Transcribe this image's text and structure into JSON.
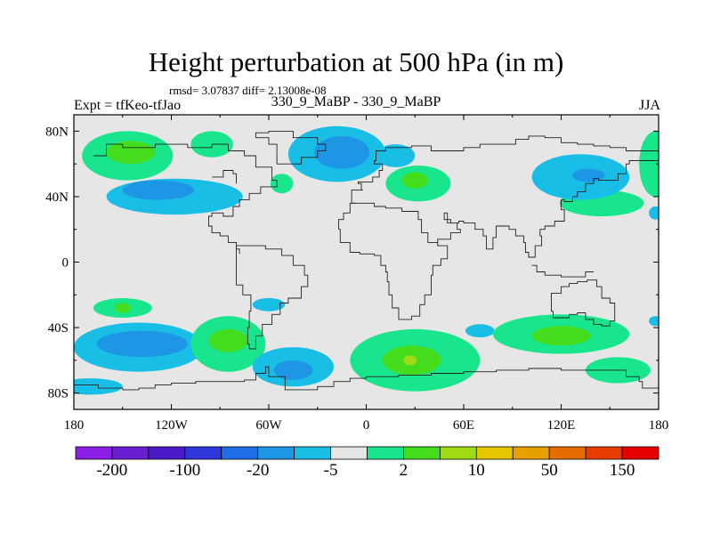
{
  "chart_data": {
    "type": "heatmap",
    "title": "Height perturbation at 500 hPa (in m)",
    "stat_text": "rmsd= 3.07837 diff= 2.13008e-08",
    "left_label": "Expt = tfKeo-tfJao",
    "center_label": "330_9_MaBP - 330_9_MaBP",
    "right_label": "JJA",
    "x_axis": {
      "range": [
        -180,
        180
      ],
      "ticks": [
        -180,
        -120,
        -60,
        0,
        60,
        120,
        180
      ],
      "tick_labels": [
        "180",
        "120W",
        "60W",
        "0",
        "60E",
        "120E",
        "180"
      ]
    },
    "y_axis": {
      "range": [
        -90,
        90
      ],
      "ticks": [
        80,
        40,
        0,
        -40,
        -80
      ],
      "tick_labels": [
        "80N",
        "40N",
        "0",
        "40S",
        "80S"
      ]
    },
    "colorbar": {
      "colors": [
        "#8c1ee6",
        "#6a1ed2",
        "#4b19c8",
        "#2d37dc",
        "#1e6ee6",
        "#1e96e6",
        "#19bee6",
        "#e6e6e6",
        "#19e68c",
        "#46dc1e",
        "#a0dc14",
        "#e6c800",
        "#e6a000",
        "#e66e00",
        "#e63c00",
        "#e60000"
      ],
      "labels": [
        "-200",
        "-100",
        "-20",
        "-5",
        "2",
        "10",
        "50",
        "150"
      ]
    },
    "anomaly_regions": [
      {
        "sign": "neg",
        "level": 1,
        "lon": -118,
        "lat": 40,
        "rlon": 42,
        "rlat": 11
      },
      {
        "sign": "neg",
        "level": 2,
        "lon": -128,
        "lat": 44,
        "rlon": 22,
        "rlat": 6
      },
      {
        "sign": "pos",
        "level": 1,
        "lon": -147,
        "lat": 65,
        "rlon": 28,
        "rlat": 15
      },
      {
        "sign": "pos",
        "level": 2,
        "lon": -145,
        "lat": 67,
        "rlon": 15,
        "rlat": 7
      },
      {
        "sign": "pos",
        "level": 1,
        "lon": -95,
        "lat": 72,
        "rlon": 13,
        "rlat": 8
      },
      {
        "sign": "neg",
        "level": 1,
        "lon": -18,
        "lat": 66,
        "rlon": 30,
        "rlat": 17
      },
      {
        "sign": "neg",
        "level": 2,
        "lon": -15,
        "lat": 67,
        "rlon": 17,
        "rlat": 10
      },
      {
        "sign": "pos",
        "level": 1,
        "lon": -52,
        "lat": 48,
        "rlon": 7,
        "rlat": 6
      },
      {
        "sign": "pos",
        "level": 1,
        "lon": 32,
        "lat": 48,
        "rlon": 20,
        "rlat": 11
      },
      {
        "sign": "pos",
        "level": 2,
        "lon": 30,
        "lat": 50,
        "rlon": 8,
        "rlat": 5
      },
      {
        "sign": "neg",
        "level": 1,
        "lon": 18,
        "lat": 65,
        "rlon": 12,
        "rlat": 7
      },
      {
        "sign": "pos",
        "level": 1,
        "lon": 145,
        "lat": 36,
        "rlon": 26,
        "rlat": 8
      },
      {
        "sign": "neg",
        "level": 1,
        "lon": 132,
        "lat": 52,
        "rlon": 30,
        "rlat": 14
      },
      {
        "sign": "neg",
        "level": 2,
        "lon": 137,
        "lat": 53,
        "rlon": 10,
        "rlat": 4
      },
      {
        "sign": "pos",
        "level": 1,
        "lon": 178,
        "lat": 60,
        "rlon": 10,
        "rlat": 20
      },
      {
        "sign": "neg",
        "level": 1,
        "lon": 178,
        "lat": 30,
        "rlon": 4,
        "rlat": 4
      },
      {
        "sign": "pos",
        "level": 1,
        "lon": -150,
        "lat": -28,
        "rlon": 18,
        "rlat": 6
      },
      {
        "sign": "pos",
        "level": 2,
        "lon": -150,
        "lat": -28,
        "rlon": 5,
        "rlat": 3
      },
      {
        "sign": "neg",
        "level": 1,
        "lon": -140,
        "lat": -52,
        "rlon": 40,
        "rlat": 15
      },
      {
        "sign": "neg",
        "level": 2,
        "lon": -138,
        "lat": -50,
        "rlon": 28,
        "rlat": 8
      },
      {
        "sign": "pos",
        "level": 1,
        "lon": -85,
        "lat": -50,
        "rlon": 23,
        "rlat": 17
      },
      {
        "sign": "pos",
        "level": 2,
        "lon": -85,
        "lat": -48,
        "rlon": 12,
        "rlat": 7
      },
      {
        "sign": "neg",
        "level": 1,
        "lon": -45,
        "lat": -64,
        "rlon": 25,
        "rlat": 12
      },
      {
        "sign": "neg",
        "level": 2,
        "lon": -45,
        "lat": -66,
        "rlon": 12,
        "rlat": 6
      },
      {
        "sign": "neg",
        "level": 1,
        "lon": -170,
        "lat": -76,
        "rlon": 20,
        "rlat": 5
      },
      {
        "sign": "neg",
        "level": 1,
        "lon": -60,
        "lat": -26,
        "rlon": 10,
        "rlat": 4
      },
      {
        "sign": "pos",
        "level": 1,
        "lon": 30,
        "lat": -60,
        "rlon": 40,
        "rlat": 19
      },
      {
        "sign": "pos",
        "level": 2,
        "lon": 28,
        "lat": -60,
        "rlon": 18,
        "rlat": 9
      },
      {
        "sign": "pos",
        "level": 3,
        "lon": 27,
        "lat": -60,
        "rlon": 4,
        "rlat": 3
      },
      {
        "sign": "neg",
        "level": 1,
        "lon": 70,
        "lat": -42,
        "rlon": 9,
        "rlat": 4
      },
      {
        "sign": "pos",
        "level": 1,
        "lon": 120,
        "lat": -44,
        "rlon": 42,
        "rlat": 12
      },
      {
        "sign": "pos",
        "level": 2,
        "lon": 120,
        "lat": -45,
        "rlon": 18,
        "rlat": 6
      },
      {
        "sign": "pos",
        "level": 1,
        "lon": 155,
        "lat": -66,
        "rlon": 20,
        "rlat": 8
      },
      {
        "sign": "neg",
        "level": 1,
        "lon": 178,
        "lat": -36,
        "rlon": 4,
        "rlat": 3
      }
    ]
  }
}
